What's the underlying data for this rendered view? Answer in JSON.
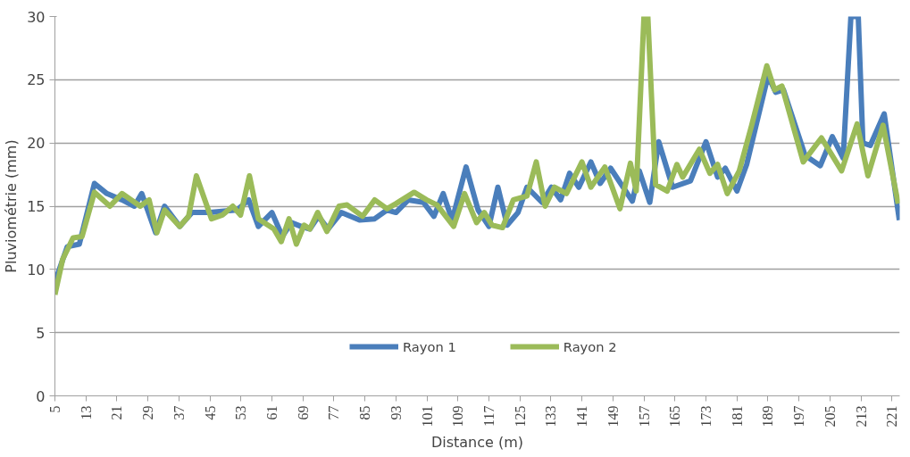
{
  "chart_data": {
    "type": "line",
    "xlabel": "Distance (m)",
    "ylabel": "Pluviométrie (mm)",
    "xlim": [
      5,
      223
    ],
    "xticks": [
      5,
      13,
      21,
      29,
      37,
      45,
      53,
      61,
      69,
      77,
      85,
      93,
      101,
      109,
      117,
      125,
      133,
      141,
      149,
      157,
      165,
      173,
      181,
      189,
      197,
      205,
      213,
      221
    ],
    "ylim": [
      0,
      30
    ],
    "yticks": [
      0,
      5,
      10,
      15,
      20,
      25,
      30
    ],
    "grid": "y",
    "legend": "bottom",
    "line_style": "solid",
    "marker": "none",
    "series": [
      {
        "name": "Rayon 1",
        "color": "#4a7ebb",
        "x": [
          5,
          8.2,
          11.3,
          15.2,
          18.4,
          22.3,
          25.5,
          27.4,
          31,
          33.3,
          37.2,
          40.4,
          45,
          52,
          55,
          57.5,
          61,
          63.7,
          66,
          68.5,
          70.8,
          73,
          75.5,
          78.9,
          83.6,
          87.5,
          90.7,
          93,
          96.2,
          100.1,
          102.8,
          105.2,
          107.5,
          111.1,
          114.2,
          117,
          119.3,
          121.7,
          124.5,
          126.8,
          130.7,
          133.1,
          135.5,
          137.8,
          140.2,
          143.3,
          145.7,
          148.4,
          154,
          155.8,
          158.5,
          160.8,
          164.4,
          169,
          173,
          176,
          178,
          181,
          183.5,
          189,
          191,
          193,
          198.6,
          202.5,
          205.6,
          208.4,
          210.4,
          212.3,
          213.5,
          215.4,
          219,
          222.9
        ],
        "values": [
          9,
          11.8,
          12,
          16.8,
          16,
          15.5,
          15,
          16,
          12.9,
          15,
          13.4,
          14.5,
          14.5,
          14.7,
          15.5,
          13.4,
          14.5,
          12.6,
          13.7,
          13.4,
          13.2,
          14.2,
          13.2,
          14.5,
          13.9,
          14,
          14.7,
          14.5,
          15.5,
          15.3,
          14.2,
          16,
          13.9,
          18.1,
          14.7,
          13.4,
          16.5,
          13.5,
          14.5,
          16.5,
          15.3,
          16.5,
          15.5,
          17.6,
          16.5,
          18.5,
          16.8,
          18,
          15.4,
          17.8,
          15.3,
          20.1,
          16.5,
          17,
          20.1,
          17.3,
          18,
          16.2,
          18.3,
          25.3,
          24,
          24.2,
          19,
          18.2,
          20.5,
          18.8,
          30,
          30,
          20,
          19.8,
          22.3,
          13.9
        ]
      },
      {
        "name": "Rayon 2",
        "color": "#9bbb59",
        "x": [
          5,
          7,
          9.7,
          12,
          15.2,
          19.2,
          22.3,
          27,
          29.3,
          31.3,
          33.3,
          37.2,
          39.5,
          41.5,
          45.4,
          48.2,
          50.9,
          52.9,
          55.2,
          57.5,
          61.5,
          63.4,
          65.4,
          67.3,
          69.3,
          70.8,
          72.8,
          75.2,
          78.3,
          80.4,
          84.4,
          87.5,
          90.7,
          93,
          97.7,
          100.9,
          103.6,
          107.9,
          110.7,
          113.8,
          115.8,
          117.8,
          120.5,
          123.3,
          126.8,
          129.2,
          131.5,
          133.9,
          137,
          141,
          143.3,
          146.9,
          150.8,
          153.5,
          155,
          157,
          158,
          160,
          163,
          165.5,
          167,
          171.3,
          174,
          176,
          178.5,
          181.6,
          184.8,
          188.7,
          190.7,
          192.6,
          198.1,
          202.8,
          208,
          212,
          214.8,
          218.7,
          222.6
        ],
        "values": [
          8,
          10.8,
          12.5,
          12.6,
          16.1,
          15,
          16,
          15,
          15.5,
          12.9,
          14.7,
          13.4,
          14.2,
          17.4,
          14,
          14.3,
          15,
          14.3,
          17.4,
          14,
          13.2,
          12.2,
          14,
          12,
          13.5,
          13.2,
          14.5,
          13,
          15,
          15.1,
          14.2,
          15.5,
          14.8,
          15.2,
          16.1,
          15.5,
          15.1,
          13.4,
          16,
          13.7,
          14.5,
          13.5,
          13.3,
          15.5,
          15.8,
          18.5,
          15,
          16.5,
          16,
          18.5,
          16.5,
          18.1,
          14.8,
          18.4,
          16.2,
          30,
          30,
          16.7,
          16.2,
          18.3,
          17.3,
          19.5,
          17.6,
          18.3,
          16,
          17.8,
          21.4,
          26.1,
          24.2,
          24.5,
          18.5,
          20.4,
          17.8,
          21.5,
          17.4,
          21.4,
          15.2
        ]
      }
    ]
  }
}
